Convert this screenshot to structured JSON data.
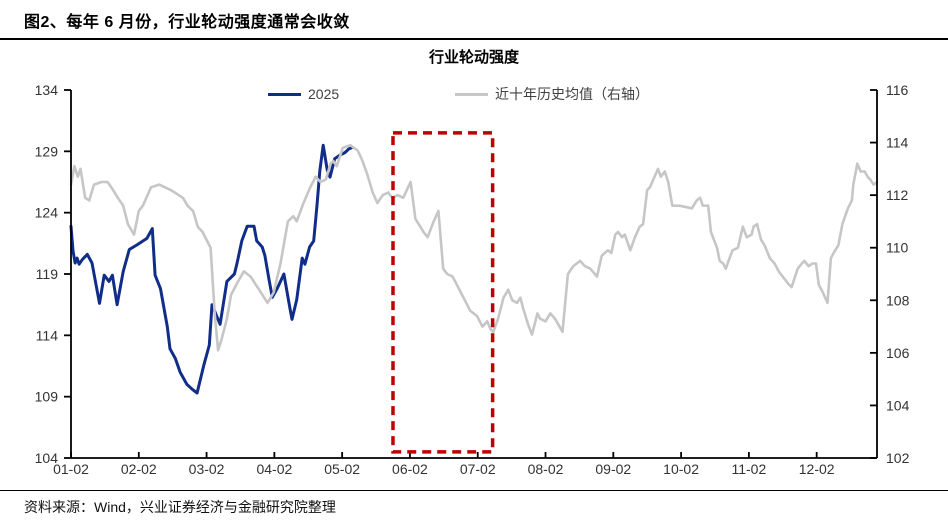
{
  "header": {
    "title": "图2、每年 6 月份，行业轮动强度通常会收敛"
  },
  "footer": {
    "source": "资料来源：Wind，兴业证券经济与金融研究院整理"
  },
  "chart_data": {
    "type": "line",
    "title": "行业轮动强度",
    "legend_position": "top",
    "grid": false,
    "colors": {
      "series_2025": "#112d8a",
      "series_avg": "#c6c6c6",
      "highlight": "#c00000",
      "axis": "#000000",
      "tick_text": "#333333"
    },
    "legend": [
      {
        "label": "2025",
        "color": "#112d8a",
        "axis": "left"
      },
      {
        "label": "近十年历史均值（右轴）",
        "color": "#c6c6c6",
        "axis": "right"
      }
    ],
    "left_axis": {
      "min": 104,
      "max": 134,
      "ticks": [
        134,
        129,
        124,
        119,
        114,
        109,
        104
      ]
    },
    "right_axis": {
      "min": 102,
      "max": 116,
      "ticks": [
        116,
        114,
        112,
        110,
        108,
        106,
        104,
        102
      ]
    },
    "x_axis": {
      "labels": [
        "01-02",
        "02-02",
        "03-02",
        "04-02",
        "05-02",
        "06-02",
        "07-02",
        "08-02",
        "09-02",
        "10-02",
        "11-02",
        "12-02"
      ],
      "domain": [
        1,
        12.89
      ]
    },
    "highlight_box": {
      "x_start_month": 5.75,
      "x_end_month": 7.22,
      "y_top_left_axis": 130.5,
      "y_bottom_left_axis": 104.5,
      "color": "#c00000"
    },
    "series": [
      {
        "name": "2025",
        "axis": "left",
        "color": "#112d8a",
        "width": 3,
        "points": [
          [
            1.0,
            122.9
          ],
          [
            1.03,
            120.9
          ],
          [
            1.06,
            119.9
          ],
          [
            1.09,
            120.3
          ],
          [
            1.12,
            119.8
          ],
          [
            1.17,
            120.2
          ],
          [
            1.24,
            120.6
          ],
          [
            1.31,
            119.9
          ],
          [
            1.42,
            116.6
          ],
          [
            1.49,
            118.9
          ],
          [
            1.56,
            118.4
          ],
          [
            1.61,
            118.9
          ],
          [
            1.68,
            116.5
          ],
          [
            1.77,
            119.2
          ],
          [
            1.86,
            121.0
          ],
          [
            1.98,
            121.4
          ],
          [
            2.12,
            121.9
          ],
          [
            2.2,
            122.7
          ],
          [
            2.24,
            118.9
          ],
          [
            2.32,
            117.8
          ],
          [
            2.42,
            114.7
          ],
          [
            2.46,
            112.9
          ],
          [
            2.54,
            112.1
          ],
          [
            2.61,
            111.0
          ],
          [
            2.71,
            110.0
          ],
          [
            2.79,
            109.6
          ],
          [
            2.86,
            109.3
          ],
          [
            2.96,
            111.6
          ],
          [
            3.04,
            113.2
          ],
          [
            3.08,
            116.5
          ],
          [
            3.2,
            114.9
          ],
          [
            3.3,
            118.4
          ],
          [
            3.41,
            119.0
          ],
          [
            3.45,
            119.9
          ],
          [
            3.52,
            121.7
          ],
          [
            3.6,
            122.9
          ],
          [
            3.7,
            122.9
          ],
          [
            3.74,
            121.7
          ],
          [
            3.82,
            121.2
          ],
          [
            3.86,
            120.5
          ],
          [
            3.92,
            118.6
          ],
          [
            3.97,
            117.1
          ],
          [
            4.04,
            117.8
          ],
          [
            4.14,
            119.0
          ],
          [
            4.22,
            116.5
          ],
          [
            4.26,
            115.3
          ],
          [
            4.33,
            116.9
          ],
          [
            4.41,
            120.3
          ],
          [
            4.45,
            119.8
          ],
          [
            4.52,
            121.2
          ],
          [
            4.58,
            121.7
          ],
          [
            4.63,
            124.7
          ],
          [
            4.67,
            127.4
          ],
          [
            4.72,
            129.5
          ],
          [
            4.78,
            127.5
          ],
          [
            4.82,
            126.9
          ],
          [
            4.89,
            128.4
          ],
          [
            4.97,
            128.7
          ],
          [
            5.04,
            128.9
          ],
          [
            5.1,
            129.2
          ],
          [
            5.14,
            129.3
          ]
        ]
      },
      {
        "name": "近十年历史均值（右轴）",
        "axis": "right",
        "color": "#c6c6c6",
        "width": 2.6,
        "points": [
          [
            1.0,
            112.4
          ],
          [
            1.05,
            113.1
          ],
          [
            1.1,
            112.7
          ],
          [
            1.14,
            113.0
          ],
          [
            1.21,
            111.9
          ],
          [
            1.27,
            111.8
          ],
          [
            1.34,
            112.4
          ],
          [
            1.45,
            112.5
          ],
          [
            1.54,
            112.5
          ],
          [
            1.62,
            112.2
          ],
          [
            1.69,
            111.9
          ],
          [
            1.77,
            111.6
          ],
          [
            1.84,
            110.9
          ],
          [
            1.93,
            110.5
          ],
          [
            2.0,
            111.4
          ],
          [
            2.06,
            111.6
          ],
          [
            2.18,
            112.3
          ],
          [
            2.3,
            112.4
          ],
          [
            2.47,
            112.2
          ],
          [
            2.65,
            111.9
          ],
          [
            2.72,
            111.6
          ],
          [
            2.8,
            111.4
          ],
          [
            2.87,
            110.8
          ],
          [
            2.94,
            110.6
          ],
          [
            3.02,
            110.2
          ],
          [
            3.06,
            110.0
          ],
          [
            3.12,
            107.5
          ],
          [
            3.17,
            106.1
          ],
          [
            3.22,
            106.5
          ],
          [
            3.3,
            107.3
          ],
          [
            3.36,
            108.2
          ],
          [
            3.46,
            108.7
          ],
          [
            3.55,
            109.1
          ],
          [
            3.65,
            108.9
          ],
          [
            3.75,
            108.5
          ],
          [
            3.9,
            107.9
          ],
          [
            3.99,
            108.3
          ],
          [
            4.09,
            109.4
          ],
          [
            4.2,
            111.0
          ],
          [
            4.28,
            111.2
          ],
          [
            4.33,
            111.0
          ],
          [
            4.43,
            111.7
          ],
          [
            4.53,
            112.3
          ],
          [
            4.61,
            112.7
          ],
          [
            4.68,
            112.5
          ],
          [
            4.76,
            112.6
          ],
          [
            4.83,
            113.2
          ],
          [
            4.87,
            113.3
          ],
          [
            4.92,
            113.1
          ],
          [
            5.01,
            113.8
          ],
          [
            5.12,
            113.9
          ],
          [
            5.23,
            113.7
          ],
          [
            5.3,
            113.3
          ],
          [
            5.37,
            112.8
          ],
          [
            5.45,
            112.1
          ],
          [
            5.52,
            111.7
          ],
          [
            5.6,
            112.0
          ],
          [
            5.68,
            112.1
          ],
          [
            5.74,
            111.9
          ],
          [
            5.82,
            112.0
          ],
          [
            5.9,
            111.9
          ],
          [
            6.01,
            112.5
          ],
          [
            6.08,
            111.1
          ],
          [
            6.2,
            110.6
          ],
          [
            6.26,
            110.4
          ],
          [
            6.35,
            111.0
          ],
          [
            6.42,
            111.4
          ],
          [
            6.49,
            109.2
          ],
          [
            6.55,
            109.0
          ],
          [
            6.63,
            108.9
          ],
          [
            6.71,
            108.5
          ],
          [
            6.77,
            108.2
          ],
          [
            6.89,
            107.6
          ],
          [
            6.99,
            107.4
          ],
          [
            7.07,
            107.0
          ],
          [
            7.14,
            107.2
          ],
          [
            7.19,
            106.9
          ],
          [
            7.23,
            106.8
          ],
          [
            7.3,
            107.3
          ],
          [
            7.38,
            108.1
          ],
          [
            7.45,
            108.4
          ],
          [
            7.51,
            108.0
          ],
          [
            7.58,
            107.9
          ],
          [
            7.63,
            108.1
          ],
          [
            7.67,
            107.7
          ],
          [
            7.74,
            107.1
          ],
          [
            7.8,
            106.7
          ],
          [
            7.88,
            107.5
          ],
          [
            7.92,
            107.3
          ],
          [
            8.0,
            107.2
          ],
          [
            8.07,
            107.5
          ],
          [
            8.14,
            107.3
          ],
          [
            8.25,
            106.8
          ],
          [
            8.33,
            109.0
          ],
          [
            8.41,
            109.3
          ],
          [
            8.51,
            109.5
          ],
          [
            8.58,
            109.3
          ],
          [
            8.66,
            109.2
          ],
          [
            8.76,
            108.9
          ],
          [
            8.83,
            109.7
          ],
          [
            8.92,
            109.9
          ],
          [
            8.97,
            109.8
          ],
          [
            9.03,
            110.5
          ],
          [
            9.07,
            110.6
          ],
          [
            9.13,
            110.4
          ],
          [
            9.17,
            110.5
          ],
          [
            9.25,
            109.9
          ],
          [
            9.32,
            110.4
          ],
          [
            9.39,
            110.8
          ],
          [
            9.44,
            110.9
          ],
          [
            9.5,
            112.2
          ],
          [
            9.54,
            112.3
          ],
          [
            9.66,
            113.0
          ],
          [
            9.7,
            112.7
          ],
          [
            9.76,
            112.9
          ],
          [
            9.81,
            112.5
          ],
          [
            9.87,
            111.6
          ],
          [
            9.98,
            111.6
          ],
          [
            10.16,
            111.5
          ],
          [
            10.23,
            111.8
          ],
          [
            10.28,
            111.9
          ],
          [
            10.32,
            111.6
          ],
          [
            10.4,
            111.6
          ],
          [
            10.44,
            110.6
          ],
          [
            10.53,
            110.0
          ],
          [
            10.57,
            109.5
          ],
          [
            10.62,
            109.4
          ],
          [
            10.66,
            109.2
          ],
          [
            10.7,
            109.5
          ],
          [
            10.76,
            109.9
          ],
          [
            10.84,
            110.0
          ],
          [
            10.91,
            110.8
          ],
          [
            10.97,
            110.4
          ],
          [
            11.04,
            110.5
          ],
          [
            11.07,
            110.8
          ],
          [
            11.12,
            110.9
          ],
          [
            11.18,
            110.3
          ],
          [
            11.23,
            110.1
          ],
          [
            11.31,
            109.6
          ],
          [
            11.38,
            109.4
          ],
          [
            11.44,
            109.1
          ],
          [
            11.53,
            108.8
          ],
          [
            11.59,
            108.6
          ],
          [
            11.63,
            108.5
          ],
          [
            11.72,
            109.2
          ],
          [
            11.78,
            109.4
          ],
          [
            11.82,
            109.5
          ],
          [
            11.88,
            109.3
          ],
          [
            11.94,
            109.4
          ],
          [
            11.99,
            109.4
          ],
          [
            12.03,
            108.6
          ],
          [
            12.09,
            108.3
          ],
          [
            12.16,
            107.9
          ],
          [
            12.21,
            109.6
          ],
          [
            12.25,
            109.8
          ],
          [
            12.32,
            110.1
          ],
          [
            12.38,
            110.9
          ],
          [
            12.46,
            111.5
          ],
          [
            12.52,
            111.8
          ],
          [
            12.54,
            112.4
          ],
          [
            12.6,
            113.2
          ],
          [
            12.65,
            112.9
          ],
          [
            12.71,
            112.9
          ],
          [
            12.75,
            112.7
          ],
          [
            12.79,
            112.6
          ],
          [
            12.84,
            112.4
          ],
          [
            12.89,
            112.5
          ]
        ]
      }
    ]
  }
}
